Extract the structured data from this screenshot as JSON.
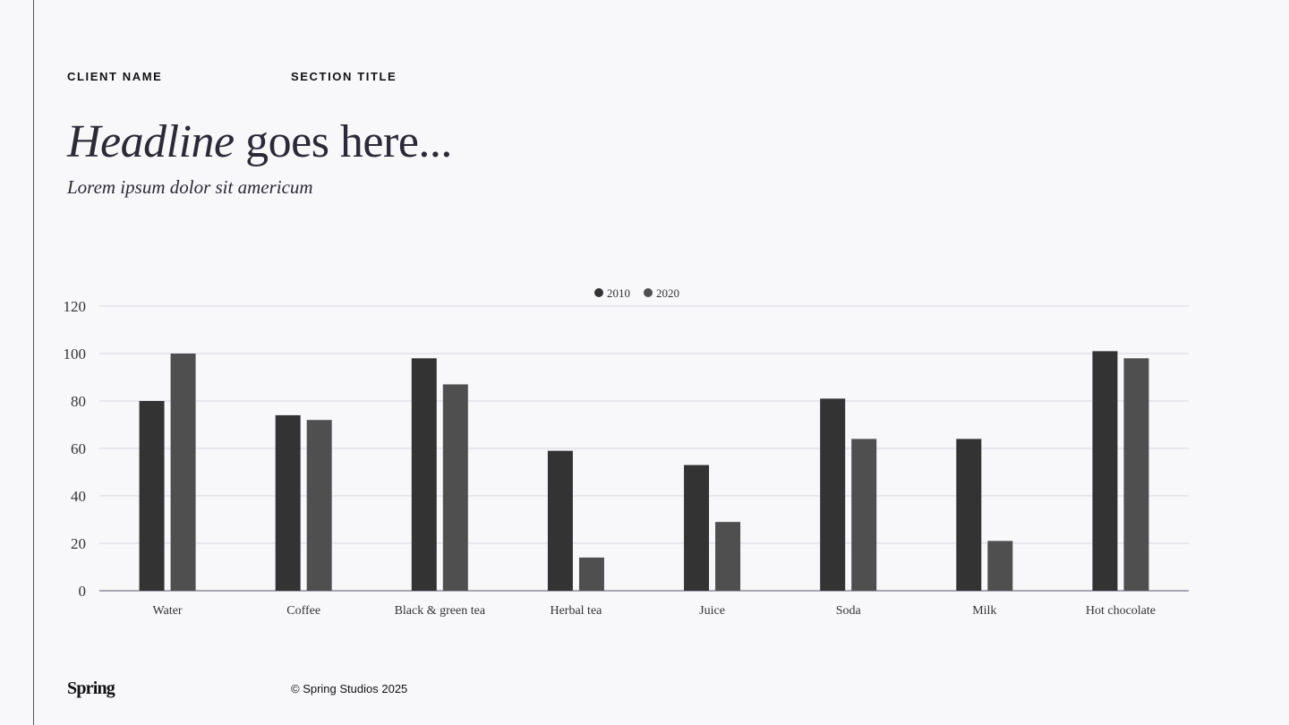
{
  "header": {
    "client_name": "CLIENT NAME",
    "section_title": "SECTION TITLE",
    "headline_italic": "Headline",
    "headline_rest": " goes here...",
    "subtitle": "Lorem ipsum dolor sit americum"
  },
  "footer": {
    "logo": "Spring",
    "copyright": "© Spring Studios 2025"
  },
  "colors": {
    "series_2010": "#333333",
    "series_2020": "#4f4f4f",
    "grid": "#d6d6e0",
    "background": "#f8f8fb"
  },
  "chart_data": {
    "type": "bar",
    "title": "",
    "xlabel": "",
    "ylabel": "",
    "categories": [
      "Water",
      "Coffee",
      "Black & green tea",
      "Herbal tea",
      "Juice",
      "Soda",
      "Milk",
      "Hot chocolate"
    ],
    "series": [
      {
        "name": "2010",
        "values": [
          80,
          74,
          98,
          59,
          53,
          81,
          64,
          101
        ]
      },
      {
        "name": "2020",
        "values": [
          100,
          72,
          87,
          14,
          29,
          64,
          21,
          98
        ]
      }
    ],
    "ylim": [
      0,
      120
    ],
    "yticks": [
      0,
      20,
      40,
      60,
      80,
      100,
      120
    ],
    "grid": true,
    "legend_position": "top-center"
  }
}
